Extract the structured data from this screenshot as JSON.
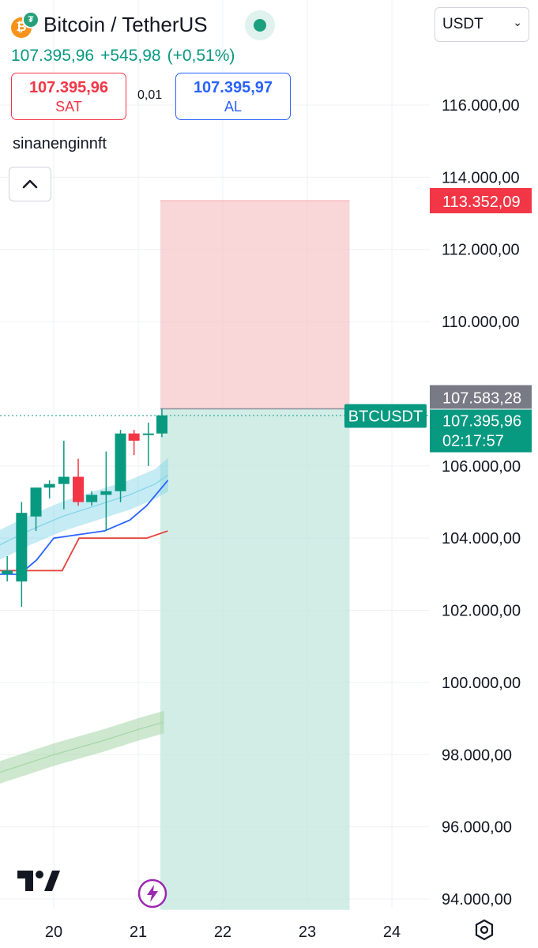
{
  "header": {
    "symbol_title": "Bitcoin / TetherUS",
    "last_price": "107.395,96",
    "change": "+545,98",
    "change_percent": "(+0,51%)",
    "currency": "USDT",
    "sell_price": "107.395,96",
    "sell_label": "SAT",
    "spread": "0,01",
    "buy_price": "107.395,97",
    "buy_label": "AL",
    "username": "sinanenginnft"
  },
  "colors": {
    "up": "#089981",
    "down": "#f23645",
    "buy": "#2962ff",
    "stop_zone": "#f7c5c8",
    "target_zone": "#bfe5dc",
    "band_cyan": "#7fd4e8",
    "band_green": "#a5d6a7",
    "line_blue": "#2962ff",
    "line_red": "#e5423b"
  },
  "chart_data": {
    "type": "candlestick",
    "symbol": "BTCUSDT",
    "x_ticks": [
      "20",
      "21",
      "22",
      "23",
      "24"
    ],
    "y_ticks": [
      "94.000,00",
      "96.000,00",
      "98.000,00",
      "100.000,00",
      "102.000,00",
      "104.000,00",
      "106.000,00",
      "110.000,00",
      "112.000,00",
      "114.000,00",
      "116.000,00"
    ],
    "y_range": [
      93800,
      117200
    ],
    "x_range": [
      19.35,
      24.8
    ],
    "candles": [
      {
        "t": 19.45,
        "o": 103.0,
        "h": 103.5,
        "l": 102.8,
        "c": 103.1
      },
      {
        "t": 19.62,
        "o": 102.8,
        "h": 105.0,
        "l": 102.1,
        "c": 104.7
      },
      {
        "t": 19.79,
        "o": 104.6,
        "h": 105.4,
        "l": 104.2,
        "c": 105.4
      },
      {
        "t": 19.95,
        "o": 105.4,
        "h": 105.6,
        "l": 105.1,
        "c": 105.5
      },
      {
        "t": 20.12,
        "o": 105.5,
        "h": 106.7,
        "l": 104.8,
        "c": 105.7
      },
      {
        "t": 20.29,
        "o": 105.7,
        "h": 106.2,
        "l": 104.9,
        "c": 105.0
      },
      {
        "t": 20.45,
        "o": 105.0,
        "h": 105.3,
        "l": 104.9,
        "c": 105.2
      },
      {
        "t": 20.62,
        "o": 105.2,
        "h": 106.4,
        "l": 104.2,
        "c": 105.3
      },
      {
        "t": 20.79,
        "o": 105.3,
        "h": 107.0,
        "l": 105.0,
        "c": 106.9
      },
      {
        "t": 20.95,
        "o": 106.9,
        "h": 107.0,
        "l": 106.3,
        "c": 106.7
      },
      {
        "t": 21.12,
        "o": 106.9,
        "h": 107.2,
        "l": 106.0,
        "c": 106.9
      },
      {
        "t": 21.28,
        "o": 106.9,
        "h": 107.58,
        "l": 106.8,
        "c": 107.4
      }
    ],
    "position": {
      "entry": 107583.28,
      "stop": 113352.09,
      "stop_label": "113.352,09",
      "entry_label": "107.583,28",
      "target": 93700,
      "start_day": 21.28,
      "end_day": 23.5
    },
    "last_price": {
      "value": 107395.96,
      "label": "107.395,96",
      "countdown": "02:17:57",
      "symbol_label": "BTCUSDT"
    },
    "indicators": {
      "cyan_band": {
        "x": [
          19.35,
          19.7,
          20.1,
          20.5,
          20.9,
          21.2,
          21.35
        ],
        "upper": [
          104.2,
          104.6,
          105.0,
          105.3,
          105.6,
          105.9,
          106.2
        ],
        "lower": [
          103.4,
          103.8,
          104.2,
          104.5,
          104.8,
          105.1,
          105.3
        ]
      },
      "blue_line": {
        "x": [
          19.35,
          19.6,
          19.8,
          20.0,
          20.3,
          20.6,
          20.9,
          21.1,
          21.35
        ],
        "y": [
          103.0,
          103.0,
          103.4,
          104.0,
          104.1,
          104.2,
          104.5,
          104.9,
          105.6
        ]
      },
      "red_line": {
        "x": [
          19.35,
          19.8,
          20.0,
          20.1,
          20.3,
          20.6,
          20.9,
          21.1,
          21.35
        ],
        "y": [
          103.1,
          103.1,
          103.1,
          103.1,
          104.0,
          104.0,
          104.0,
          104.0,
          104.2
        ]
      },
      "green_band": {
        "x": [
          19.35,
          20.0,
          20.6,
          21.0,
          21.3
        ],
        "upper": [
          97.8,
          98.3,
          98.7,
          99.0,
          99.2
        ],
        "lower": [
          97.2,
          97.7,
          98.1,
          98.4,
          98.6
        ]
      }
    }
  }
}
